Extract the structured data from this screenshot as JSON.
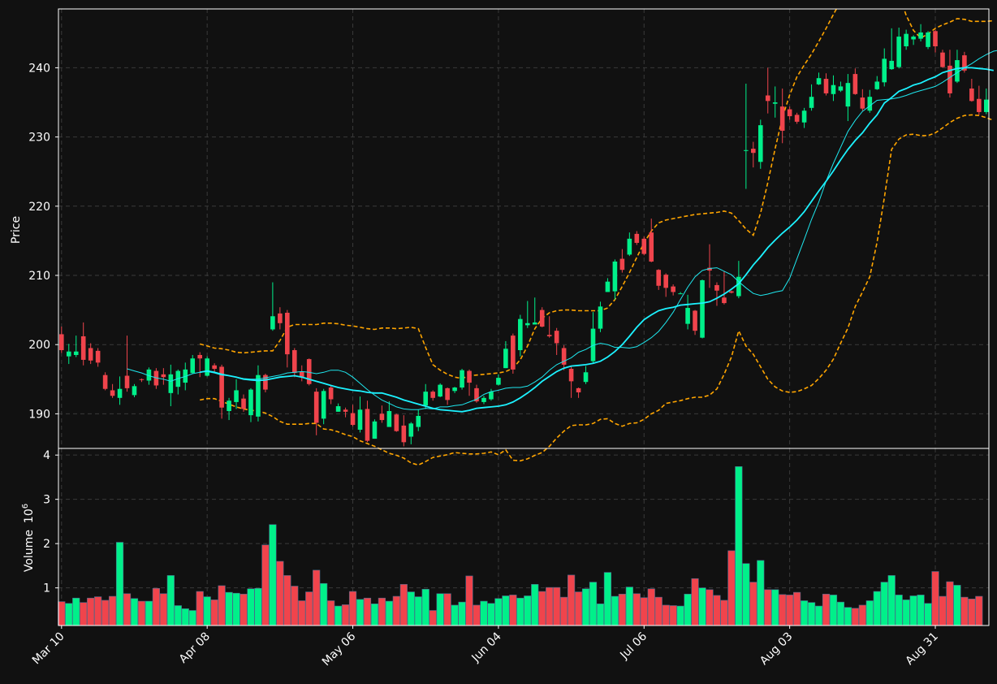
{
  "theme": {
    "background": "#111111",
    "axes_color": "#ffffff",
    "grid_color": "#3a3a3a",
    "up_color": "#00f08a",
    "down_color": "#f0444c",
    "ma_fast_color": "#1ee7ee",
    "ma_slow_color": "#1cf2ff",
    "band_color": "#ffa500"
  },
  "chart_data": {
    "type": "candlestick",
    "grid": true,
    "price_panel": {
      "ylabel": "Price",
      "ylim": [
        185,
        248.5
      ],
      "yticks": [
        190,
        200,
        210,
        220,
        230,
        240
      ]
    },
    "volume_panel": {
      "ylabel": "Volume",
      "scale_label": "10",
      "scale_exponent": "6",
      "ylim": [
        0.15,
        4.15
      ],
      "yticks": [
        1,
        2,
        3,
        4
      ]
    },
    "xtick_labels": [
      "Mar 10",
      "Apr 08",
      "May 06",
      "Jun 04",
      "Jul 06",
      "Aug 03",
      "Aug 31"
    ],
    "xtick_index": [
      0,
      20,
      40,
      60,
      80,
      100,
      120
    ],
    "candles": [
      [
        201.5,
        199.2,
        202.6,
        198.8
      ],
      [
        198.3,
        199.0,
        200.1,
        197.2
      ],
      [
        198.5,
        199.0,
        201.3,
        198.2
      ],
      [
        201.2,
        197.8,
        203.2,
        197.0
      ],
      [
        199.5,
        197.7,
        200.2,
        197.2
      ],
      [
        199.1,
        197.4,
        199.5,
        196.8
      ],
      [
        195.6,
        193.6,
        196.0,
        193.4
      ],
      [
        193.4,
        192.6,
        194.3,
        192.3
      ],
      [
        192.3,
        193.6,
        195.4,
        191.3
      ],
      [
        195.5,
        193.7,
        201.3,
        193.2
      ],
      [
        192.7,
        194.0,
        194.3,
        192.4
      ],
      [
        195.0,
        194.9,
        195.1,
        194.6
      ],
      [
        194.8,
        196.4,
        196.7,
        194.2
      ],
      [
        196.2,
        194.1,
        196.6,
        193.6
      ],
      [
        195.7,
        195.3,
        196.6,
        194.2
      ],
      [
        193.0,
        195.7,
        197.1,
        191.1
      ],
      [
        193.9,
        196.2,
        196.4,
        192.8
      ],
      [
        194.5,
        196.4,
        197.4,
        193.4
      ],
      [
        195.9,
        198.0,
        198.5,
        195.8
      ],
      [
        198.5,
        198.0,
        198.9,
        195.3
      ],
      [
        195.5,
        198.0,
        198.3,
        195.4
      ],
      [
        197.0,
        196.5,
        197.3,
        196.0
      ],
      [
        196.8,
        190.9,
        197.1,
        189.3
      ],
      [
        190.4,
        191.9,
        192.3,
        189.1
      ],
      [
        191.7,
        193.4,
        195.0,
        190.7
      ],
      [
        192.2,
        190.7,
        192.8,
        190.3
      ],
      [
        189.8,
        193.5,
        193.7,
        188.8
      ],
      [
        189.6,
        195.6,
        197.0,
        188.9
      ],
      [
        195.6,
        193.5,
        195.8,
        193.1
      ],
      [
        202.2,
        204.1,
        209.0,
        202.0
      ],
      [
        204.5,
        203.1,
        205.4,
        202.2
      ],
      [
        204.6,
        198.6,
        205.0,
        196.7
      ],
      [
        199.2,
        195.9,
        199.5,
        195.3
      ],
      [
        196.1,
        195.3,
        197.0,
        194.7
      ],
      [
        197.9,
        194.3,
        198.0,
        194.1
      ],
      [
        193.2,
        188.7,
        193.7,
        186.9
      ],
      [
        189.3,
        193.3,
        193.6,
        188.5
      ],
      [
        193.8,
        192.1,
        194.1,
        191.4
      ],
      [
        190.3,
        191.1,
        191.5,
        190.3
      ],
      [
        190.6,
        190.3,
        190.9,
        189.5
      ],
      [
        190.1,
        188.4,
        191.3,
        188.2
      ],
      [
        187.7,
        190.6,
        192.5,
        187.3
      ],
      [
        190.7,
        186.1,
        191.9,
        185.9
      ],
      [
        186.4,
        188.9,
        189.2,
        186.4
      ],
      [
        190.0,
        189.1,
        191.2,
        188.7
      ],
      [
        188.1,
        190.4,
        191.8,
        188.2
      ],
      [
        189.9,
        187.5,
        190.0,
        187.4
      ],
      [
        188.3,
        185.9,
        189.8,
        185.3
      ],
      [
        186.7,
        188.6,
        188.8,
        185.6
      ],
      [
        188.1,
        189.7,
        190.6,
        187.5
      ],
      [
        191.2,
        193.2,
        194.3,
        190.7
      ],
      [
        193.2,
        192.3,
        193.4,
        191.9
      ],
      [
        192.5,
        194.2,
        194.4,
        192.4
      ],
      [
        193.7,
        192.0,
        193.8,
        191.3
      ],
      [
        193.3,
        193.8,
        193.9,
        193.0
      ],
      [
        193.8,
        196.3,
        196.5,
        193.5
      ],
      [
        196.2,
        194.5,
        196.4,
        192.6
      ],
      [
        193.7,
        191.8,
        194.2,
        191.6
      ],
      [
        191.7,
        192.3,
        192.6,
        191.4
      ],
      [
        192.1,
        193.2,
        193.6,
        191.9
      ],
      [
        194.2,
        195.2,
        195.7,
        194.1
      ],
      [
        196.6,
        199.4,
        200.5,
        196.6
      ],
      [
        201.3,
        196.4,
        201.6,
        195.8
      ],
      [
        199.2,
        203.7,
        204.3,
        198.3
      ],
      [
        202.8,
        203.1,
        206.3,
        202.4
      ],
      [
        202.9,
        203.2,
        206.8,
        202.9
      ],
      [
        205.0,
        202.6,
        205.4,
        202.5
      ],
      [
        201.4,
        201.2,
        204.1,
        201.0
      ],
      [
        202.0,
        200.2,
        202.4,
        198.5
      ],
      [
        199.5,
        197.1,
        199.9,
        196.3
      ],
      [
        196.5,
        194.7,
        196.9,
        192.3
      ],
      [
        193.7,
        193.1,
        193.8,
        192.3
      ],
      [
        194.6,
        196.0,
        196.9,
        194.3
      ],
      [
        197.6,
        202.3,
        204.7,
        197.4
      ],
      [
        202.3,
        205.5,
        206.2,
        201.8
      ],
      [
        207.6,
        209.1,
        209.6,
        207.6
      ],
      [
        207.7,
        212.0,
        212.3,
        206.5
      ],
      [
        212.4,
        210.8,
        213.8,
        210.4
      ],
      [
        213.0,
        215.3,
        216.2,
        212.8
      ],
      [
        216.0,
        214.7,
        216.4,
        214.4
      ],
      [
        215.3,
        213.1,
        215.6,
        212.9
      ],
      [
        216.2,
        212.0,
        218.2,
        211.9
      ],
      [
        210.8,
        208.5,
        210.9,
        207.9
      ],
      [
        210.1,
        208.2,
        210.3,
        206.9
      ],
      [
        208.4,
        207.6,
        208.7,
        207.1
      ],
      [
        207.4,
        207.4,
        207.6,
        207.3
      ],
      [
        203.0,
        205.3,
        207.2,
        202.2
      ],
      [
        204.9,
        202.0,
        205.0,
        201.4
      ],
      [
        201.0,
        209.3,
        209.4,
        200.9
      ],
      [
        211.1,
        210.7,
        214.5,
        208.2
      ],
      [
        208.6,
        207.8,
        209.0,
        205.6
      ],
      [
        206.8,
        206.0,
        210.6,
        205.8
      ],
      [
        207.7,
        207.5,
        207.8,
        207.4
      ],
      [
        207.0,
        209.8,
        212.1,
        206.7
      ],
      [
        228.0,
        228.1,
        237.7,
        222.5
      ],
      [
        228.3,
        227.7,
        229.3,
        225.6
      ],
      [
        226.4,
        231.7,
        232.5,
        225.4
      ],
      [
        236.0,
        235.2,
        240.0,
        233.4
      ],
      [
        234.8,
        235.0,
        237.3,
        232.8
      ],
      [
        234.4,
        230.9,
        237.0,
        229.1
      ],
      [
        234.0,
        233.0,
        234.4,
        232.5
      ],
      [
        233.2,
        232.2,
        233.5,
        231.9
      ],
      [
        232.1,
        233.8,
        234.2,
        231.3
      ],
      [
        234.2,
        235.8,
        237.6,
        233.8
      ],
      [
        237.6,
        238.5,
        239.3,
        237.5
      ],
      [
        238.4,
        236.3,
        239.2,
        236.0
      ],
      [
        236.2,
        237.5,
        238.9,
        235.2
      ],
      [
        236.7,
        237.3,
        238.0,
        236.5
      ],
      [
        234.4,
        237.8,
        239.1,
        232.3
      ],
      [
        239.1,
        236.2,
        239.9,
        236.1
      ],
      [
        235.7,
        234.1,
        236.9,
        233.8
      ],
      [
        233.8,
        235.8,
        236.8,
        233.5
      ],
      [
        236.9,
        238.0,
        238.8,
        236.8
      ],
      [
        237.9,
        241.3,
        242.8,
        237.3
      ],
      [
        239.8,
        241.0,
        245.7,
        239.7
      ],
      [
        240.1,
        244.5,
        245.8,
        239.9
      ],
      [
        243.1,
        244.9,
        245.5,
        242.6
      ],
      [
        244.1,
        244.5,
        244.7,
        243.3
      ],
      [
        244.2,
        245.1,
        246.3,
        243.8
      ],
      [
        243.0,
        245.1,
        245.3,
        242.7
      ],
      [
        245.3,
        243.1,
        245.5,
        242.2
      ],
      [
        242.2,
        240.1,
        242.6,
        240.0
      ],
      [
        240.3,
        236.3,
        242.6,
        235.7
      ],
      [
        238.0,
        241.1,
        242.6,
        237.8
      ],
      [
        241.8,
        239.6,
        242.3,
        239.3
      ],
      [
        237.0,
        235.2,
        238.4,
        235.1
      ],
      [
        235.5,
        233.6,
        237.4,
        233.2
      ],
      [
        233.6,
        235.4,
        237.0,
        233.3
      ]
    ],
    "volume_millions": [
      0.69,
      0.65,
      0.77,
      0.67,
      0.77,
      0.8,
      0.72,
      0.81,
      2.03,
      0.87,
      0.76,
      0.7,
      0.7,
      0.99,
      0.87,
      1.28,
      0.6,
      0.53,
      0.49,
      0.92,
      0.8,
      0.73,
      1.05,
      0.9,
      0.88,
      0.86,
      0.98,
      0.99,
      1.97,
      2.43,
      1.6,
      1.28,
      1.04,
      0.71,
      0.91,
      1.4,
      1.1,
      0.71,
      0.59,
      0.62,
      0.92,
      0.74,
      0.77,
      0.64,
      0.77,
      0.7,
      0.81,
      1.08,
      0.91,
      0.8,
      0.97,
      0.49,
      0.87,
      0.87,
      0.61,
      0.68,
      1.27,
      0.61,
      0.7,
      0.65,
      0.76,
      0.82,
      0.84,
      0.77,
      0.82,
      1.08,
      0.92,
      1.01,
      1.01,
      0.79,
      1.29,
      0.91,
      0.98,
      1.13,
      0.64,
      1.35,
      0.81,
      0.86,
      1.02,
      0.87,
      0.78,
      0.98,
      0.79,
      0.61,
      0.6,
      0.59,
      0.86,
      1.21,
      1.0,
      0.96,
      0.83,
      0.72,
      1.84,
      3.74,
      1.55,
      1.13,
      1.62,
      0.96,
      0.96,
      0.85,
      0.84,
      0.9,
      0.71,
      0.67,
      0.59,
      0.86,
      0.84,
      0.68,
      0.56,
      0.54,
      0.61,
      0.71,
      0.92,
      1.13,
      1.28,
      0.84,
      0.73,
      0.82,
      0.84,
      0.65,
      1.37,
      0.81,
      1.14,
      1.06,
      0.79,
      0.75,
      0.81
    ],
    "ma_fast": {
      "start_index": 9,
      "values": [
        196.5,
        196.2,
        195.9,
        195.5,
        195.2,
        195.0,
        194.7,
        195.1,
        195.4,
        195.8,
        196.0,
        196.1,
        195.9,
        195.6,
        195.5,
        195.3,
        195.1,
        195.0,
        195.0,
        195.2,
        195.4,
        195.6,
        195.9,
        196.0,
        196.1,
        196.0,
        195.8,
        196.0,
        196.3,
        196.3,
        196.0,
        195.3,
        194.4,
        193.5,
        192.7,
        192.0,
        191.5,
        191.0,
        190.7,
        190.6,
        190.6,
        190.8,
        190.7,
        191.0,
        191.0,
        191.2,
        191.3,
        191.7,
        192.1,
        192.8,
        193.2,
        193.4,
        193.7,
        193.8,
        193.8,
        194.0,
        194.6,
        195.3,
        196.3,
        197.1,
        197.6,
        198.1,
        198.9,
        199.3,
        199.9,
        200.2,
        200.0,
        199.6,
        199.6,
        199.5,
        199.7,
        200.3,
        201.0,
        201.9,
        203.2,
        204.7,
        206.5,
        208.3,
        209.8,
        210.7,
        211.0,
        211.1,
        210.6,
        210.1,
        209.1,
        208.2,
        207.4,
        207.1,
        207.3,
        207.6,
        207.8,
        209.6,
        212.4,
        215.2,
        218.1,
        220.6,
        223.6,
        226.2,
        228.5,
        230.8,
        232.4,
        233.7,
        234.5,
        235.3,
        235.4,
        235.5,
        235.7,
        236.0,
        236.4,
        236.7,
        237.0,
        237.3,
        237.9,
        238.6,
        239.3,
        240.0,
        240.6,
        241.3,
        241.9,
        242.4,
        242.6,
        242.5,
        242.1,
        241.3,
        240.3
      ]
    },
    "ma_slow": {
      "start_index": 19,
      "values": [
        196.0,
        196.2,
        196.0,
        195.7,
        195.5,
        195.3,
        195.0,
        194.9,
        194.8,
        194.9,
        195.1,
        195.3,
        195.4,
        195.5,
        195.3,
        195.0,
        194.7,
        194.4,
        194.1,
        193.8,
        193.6,
        193.4,
        193.3,
        193.1,
        193.0,
        193.0,
        192.7,
        192.4,
        192.0,
        191.7,
        191.4,
        191.1,
        190.8,
        190.6,
        190.5,
        190.4,
        190.3,
        190.5,
        190.8,
        190.9,
        191.0,
        191.1,
        191.3,
        191.7,
        192.3,
        193.0,
        193.8,
        194.7,
        195.4,
        196.1,
        196.6,
        196.9,
        197.0,
        197.1,
        197.3,
        197.6,
        198.2,
        199.0,
        200.0,
        201.2,
        202.5,
        203.6,
        204.3,
        204.9,
        205.2,
        205.4,
        205.7,
        205.8,
        205.9,
        206.0,
        206.2,
        206.7,
        207.3,
        208.0,
        208.8,
        210.1,
        211.5,
        212.7,
        214.0,
        215.1,
        216.1,
        217.0,
        218.0,
        219.2,
        220.7,
        222.2,
        223.6,
        225.1,
        226.7,
        228.2,
        229.5,
        230.6,
        232.0,
        233.2,
        234.9,
        235.7,
        236.6,
        237.0,
        237.5,
        237.8,
        238.3,
        238.7,
        239.3,
        239.6,
        239.9,
        240.0,
        240.0,
        239.9,
        239.8,
        239.6
      ]
    },
    "band_upper": {
      "start_index": 19,
      "values": [
        200.1,
        199.8,
        199.5,
        199.4,
        199.2,
        198.9,
        198.8,
        198.9,
        199.0,
        199.1,
        199.1,
        200.6,
        202.5,
        202.9,
        202.9,
        202.9,
        202.9,
        203.1,
        203.1,
        203.0,
        202.8,
        202.7,
        202.5,
        202.3,
        202.2,
        202.4,
        202.4,
        202.3,
        202.4,
        202.5,
        202.3,
        199.6,
        197.1,
        196.3,
        195.7,
        195.3,
        195.1,
        195.5,
        195.6,
        195.7,
        195.8,
        195.9,
        196.1,
        196.6,
        197.8,
        199.8,
        202.3,
        203.8,
        204.6,
        204.9,
        205.0,
        205.0,
        204.9,
        204.9,
        204.9,
        204.9,
        205.3,
        206.5,
        208.4,
        210.4,
        212.6,
        214.7,
        216.4,
        217.6,
        218.0,
        218.2,
        218.4,
        218.6,
        218.8,
        218.9,
        219.0,
        219.1,
        219.3,
        219.0,
        217.9,
        216.7,
        215.8,
        219.0,
        223.4,
        228.3,
        232.8,
        236.1,
        238.7,
        240.4,
        242.0,
        243.8,
        245.7,
        247.7,
        249.6,
        251.7,
        254.2,
        256.2,
        257.8,
        258.9,
        258.1,
        256.2,
        250.6,
        247.6,
        245.4,
        244.3,
        244.9,
        245.7,
        246.2,
        246.6,
        247.1,
        247.0,
        246.7,
        246.7,
        246.7,
        246.8
      ]
    },
    "band_lower": {
      "start_index": 19,
      "values": [
        192.0,
        192.2,
        192.2,
        191.8,
        191.4,
        191.0,
        190.7,
        190.5,
        190.4,
        190.1,
        189.6,
        188.9,
        188.5,
        188.5,
        188.5,
        188.6,
        188.6,
        187.8,
        187.7,
        187.4,
        187.0,
        186.7,
        186.1,
        185.7,
        185.3,
        184.8,
        184.3,
        184.0,
        183.6,
        182.9,
        182.6,
        183.1,
        183.7,
        183.9,
        184.1,
        184.4,
        184.3,
        184.2,
        184.2,
        184.3,
        184.5,
        184.1,
        184.8,
        183.3,
        183.2,
        183.5,
        184.0,
        184.4,
        185.3,
        186.5,
        187.5,
        188.3,
        188.4,
        188.4,
        188.6,
        189.2,
        189.3,
        188.6,
        188.2,
        188.6,
        188.7,
        189.2,
        190.0,
        190.5,
        191.5,
        191.7,
        191.9,
        192.2,
        192.4,
        192.4,
        192.7,
        193.6,
        195.7,
        198.2,
        202.0,
        199.8,
        198.6,
        196.8,
        195.0,
        193.9,
        193.3,
        193.1,
        193.2,
        193.6,
        194.1,
        195.1,
        196.3,
        197.9,
        200.2,
        202.4,
        205.5,
        207.6,
        209.8,
        214.8,
        221.2,
        228.2,
        229.7,
        230.3,
        230.4,
        230.2,
        230.2,
        230.6,
        231.3,
        232.1,
        232.7,
        233.1,
        233.2,
        233.1,
        232.8,
        232.4
      ]
    }
  }
}
